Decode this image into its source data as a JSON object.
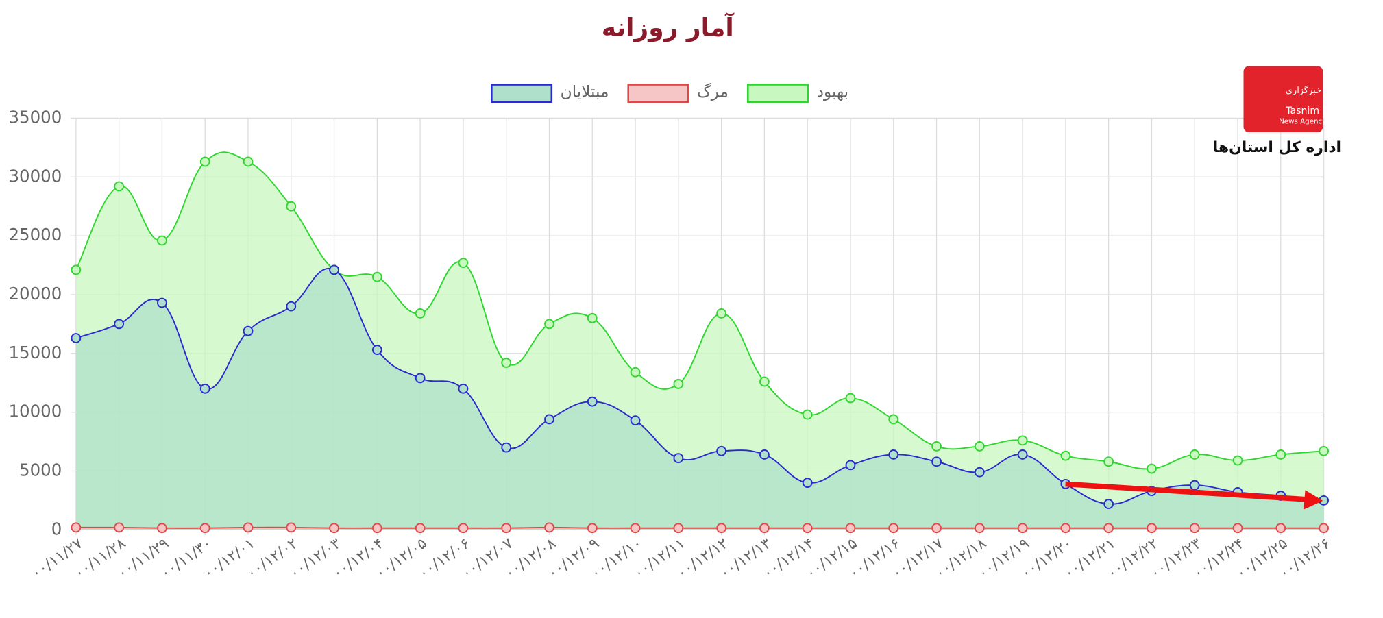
{
  "chart_data": {
    "type": "line",
    "title": "آمار روزانه",
    "categories": [
      "۰۰/۱۱/۲۷",
      "۰۰/۱۱/۲۸",
      "۰۰/۱۱/۲۹",
      "۰۰/۱۱/۳۰",
      "۰۰/۱۲/۰۱",
      "۰۰/۱۲/۰۲",
      "۰۰/۱۲/۰۳",
      "۰۰/۱۲/۰۴",
      "۰۰/۱۲/۰۵",
      "۰۰/۱۲/۰۶",
      "۰۰/۱۲/۰۷",
      "۰۰/۱۲/۰۸",
      "۰۰/۱۲/۰۹",
      "۰۰/۱۲/۱۰",
      "۰۰/۱۲/۱۱",
      "۰۰/۱۲/۱۲",
      "۰۰/۱۲/۱۳",
      "۰۰/۱۲/۱۴",
      "۰۰/۱۲/۱۵",
      "۰۰/۱۲/۱۶",
      "۰۰/۱۲/۱۷",
      "۰۰/۱۲/۱۸",
      "۰۰/۱۲/۱۹",
      "۰۰/۱۲/۲۰",
      "۰۰/۱۲/۲۱",
      "۰۰/۱۲/۲۲",
      "۰۰/۱۲/۲۳",
      "۰۰/۱۲/۲۴",
      "۰۰/۱۲/۲۵",
      "۰۰/۱۲/۲۶"
    ],
    "series": [
      {
        "name": "بهبود",
        "color": "#2fd62f",
        "fill": "#c8f7bf",
        "values": [
          22100,
          29200,
          24600,
          31300,
          31300,
          27500,
          22100,
          21500,
          18400,
          22700,
          14200,
          17500,
          18000,
          13400,
          12400,
          18400,
          12600,
          9800,
          11200,
          9400,
          7100,
          7100,
          7600,
          6300,
          5800,
          5200,
          6400,
          5900,
          6400,
          6700
        ]
      },
      {
        "name": "مرگ",
        "color": "#e04848",
        "fill": "#f6c6c6",
        "values": [
          200,
          200,
          150,
          150,
          200,
          200,
          150,
          150,
          150,
          150,
          150,
          200,
          150,
          150,
          150,
          150,
          150,
          150,
          150,
          150,
          150,
          150,
          150,
          150,
          150,
          150,
          150,
          150,
          150,
          150
        ]
      },
      {
        "name": "مبتلایان",
        "color": "#2a2ad0",
        "fill": "#aee0cb",
        "values": [
          16300,
          17500,
          19300,
          12000,
          16900,
          19000,
          22100,
          15300,
          12900,
          12000,
          7000,
          9400,
          10900,
          9300,
          6100,
          6700,
          6400,
          4000,
          5500,
          6400,
          5800,
          4900,
          6400,
          3900,
          2200,
          3300,
          3800,
          3200,
          2900,
          2500
        ]
      }
    ],
    "ylim": [
      0,
      35000
    ],
    "yticks": [
      0,
      5000,
      10000,
      15000,
      20000,
      25000,
      30000,
      35000
    ],
    "grid": true
  },
  "logo": {
    "brand_fa": "خبرگزاری",
    "brand_en": "Tasnim",
    "tagline": "News Agency",
    "caption": "اداره کل استان‌ها"
  }
}
